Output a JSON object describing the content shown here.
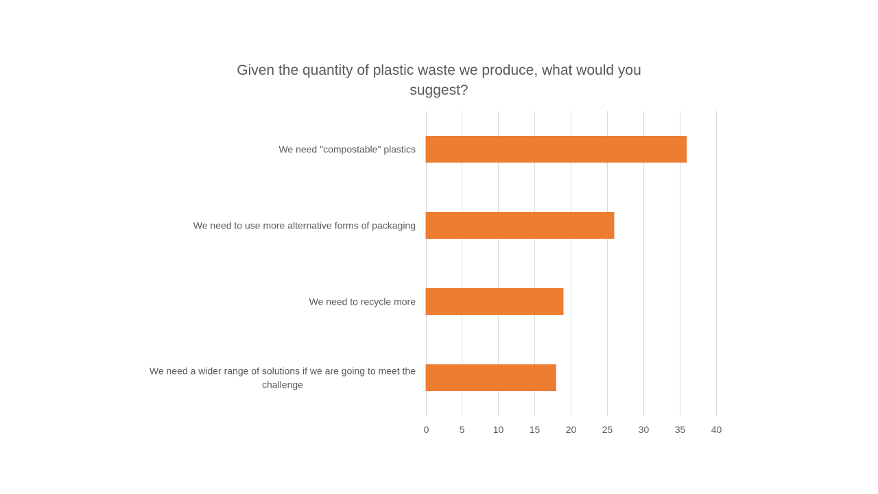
{
  "chart_data": {
    "type": "bar",
    "orientation": "horizontal",
    "title": "Given the quantity of plastic waste we produce, what would you suggest?",
    "categories": [
      "We need \"compostable\" plastics",
      "We need to use more alternative forms of packaging",
      "We need to recycle more",
      "We need a wider range of solutions if we are going to meet the challenge"
    ],
    "values": [
      36,
      26,
      19,
      18
    ],
    "xlim": [
      0,
      40
    ],
    "xticks": [
      0,
      5,
      10,
      15,
      20,
      25,
      30,
      35,
      40
    ],
    "grid": true,
    "legend": "none",
    "bar_color": "#ED7D31",
    "grid_color": "#D9D9D9",
    "text_color": "#595959"
  }
}
